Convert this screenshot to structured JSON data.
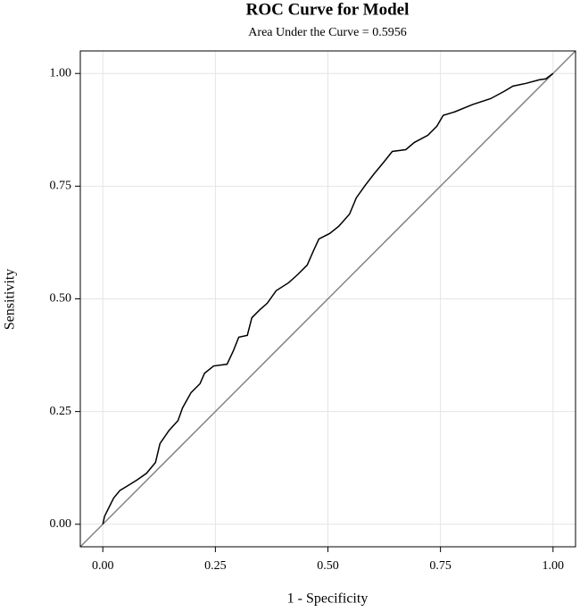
{
  "chart_data": {
    "type": "line",
    "title": "ROC Curve for Model",
    "subtitle": "Area Under the Curve = 0.5956",
    "x_label": "1 - Specificity",
    "y_label": "Sensitivity",
    "xlim": [
      -0.05,
      1.05
    ],
    "ylim": [
      -0.05,
      1.05
    ],
    "xticks": [
      {
        "value": 0,
        "label": "0.00"
      },
      {
        "value": 0.25,
        "label": "0.25"
      },
      {
        "value": 0.5,
        "label": "0.50"
      },
      {
        "value": 0.75,
        "label": "0.75"
      },
      {
        "value": 1,
        "label": "1.00"
      }
    ],
    "yticks": [
      {
        "value": 0,
        "label": "0.00"
      },
      {
        "value": 0.25,
        "label": "0.25"
      },
      {
        "value": 0.5,
        "label": "0.50"
      },
      {
        "value": 0.75,
        "label": "0.75"
      },
      {
        "value": 1,
        "label": "1.00"
      }
    ],
    "grid": true,
    "reference_color": "#808080",
    "x": [
      0,
      0.004,
      0.012,
      0.024,
      0.038,
      0.058,
      0.077,
      0.097,
      0.117,
      0.127,
      0.147,
      0.167,
      0.177,
      0.196,
      0.216,
      0.226,
      0.246,
      0.276,
      0.29,
      0.302,
      0.321,
      0.331,
      0.349,
      0.365,
      0.385,
      0.413,
      0.433,
      0.454,
      0.468,
      0.48,
      0.504,
      0.524,
      0.548,
      0.563,
      0.583,
      0.603,
      0.623,
      0.643,
      0.673,
      0.692,
      0.722,
      0.742,
      0.756,
      0.782,
      0.821,
      0.861,
      0.891,
      0.911,
      0.94,
      0.97,
      0.984,
      1
    ],
    "series": [
      {
        "color": "#000000",
        "values": [
          0,
          0.018,
          0.034,
          0.058,
          0.075,
          0.087,
          0.099,
          0.113,
          0.137,
          0.179,
          0.208,
          0.23,
          0.258,
          0.292,
          0.312,
          0.335,
          0.351,
          0.355,
          0.385,
          0.415,
          0.419,
          0.458,
          0.476,
          0.49,
          0.518,
          0.536,
          0.554,
          0.575,
          0.607,
          0.633,
          0.645,
          0.661,
          0.688,
          0.724,
          0.752,
          0.778,
          0.802,
          0.827,
          0.831,
          0.847,
          0.863,
          0.883,
          0.907,
          0.915,
          0.931,
          0.944,
          0.96,
          0.972,
          0.978,
          0.986,
          0.988,
          1
        ]
      }
    ]
  }
}
